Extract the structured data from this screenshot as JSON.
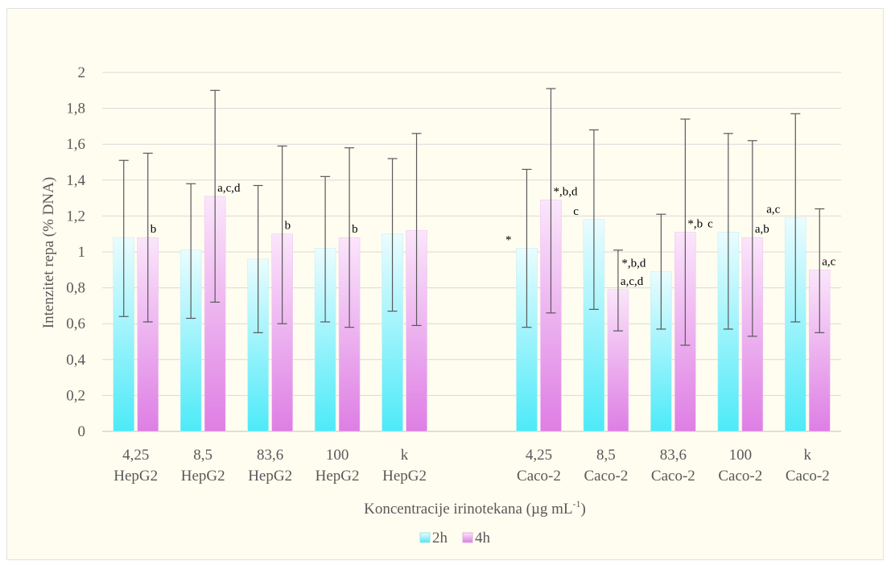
{
  "chart_data": {
    "type": "bar",
    "title": "",
    "xlabel": "Koncentracije irinotekana (µg mL",
    "xlabel_superscript": "-1",
    "xlabel_suffix": ")",
    "ylabel": "Intenzitet repa (% DNA)",
    "ylim": [
      0,
      2
    ],
    "yticks": [
      "0",
      "0,2",
      "0,4",
      "0,6",
      "0,8",
      "1",
      "1,2",
      "1,4",
      "1,6",
      "1,8",
      "2"
    ],
    "grid": true,
    "legend_position": "bottom",
    "categories": [
      [
        "4,25",
        "HepG2"
      ],
      [
        "8,5",
        "HepG2"
      ],
      [
        "83,6",
        "HepG2"
      ],
      [
        "100",
        "HepG2"
      ],
      [
        "k",
        "HepG2"
      ],
      [
        "",
        ""
      ],
      [
        "4,25",
        "Caco-2"
      ],
      [
        "8,5",
        "Caco-2"
      ],
      [
        "83,6",
        "Caco-2"
      ],
      [
        "100",
        "Caco-2"
      ],
      [
        "k",
        "Caco-2"
      ]
    ],
    "series": [
      {
        "name": "2h",
        "color_top": "#eafcff",
        "color_bottom": "#4deaf8",
        "values": [
          1.08,
          1.01,
          0.96,
          1.02,
          1.1,
          null,
          1.02,
          1.18,
          0.89,
          1.11,
          1.19
        ],
        "error_low": [
          0.64,
          0.63,
          0.55,
          0.61,
          0.67,
          null,
          0.58,
          0.68,
          0.57,
          0.57,
          0.61
        ],
        "error_high": [
          1.51,
          1.38,
          1.37,
          1.42,
          1.52,
          null,
          1.46,
          1.68,
          1.21,
          1.66,
          1.77
        ],
        "annotations": [
          "",
          "",
          "",
          "",
          "",
          "",
          "*",
          "c",
          "*,b,d",
          "c",
          "a,c"
        ]
      },
      {
        "name": "4h",
        "color_top": "#fbe6fb",
        "color_bottom": "#de7ee4",
        "values": [
          1.08,
          1.31,
          1.1,
          1.08,
          1.12,
          null,
          1.29,
          0.79,
          1.11,
          1.08,
          0.9
        ],
        "error_low": [
          0.61,
          0.72,
          0.6,
          0.58,
          0.59,
          null,
          0.66,
          0.56,
          0.48,
          0.53,
          0.55
        ],
        "error_high": [
          1.55,
          1.9,
          1.59,
          1.58,
          1.66,
          null,
          1.91,
          1.01,
          1.74,
          1.62,
          1.24
        ],
        "annotations": [
          "b",
          "a,c,d",
          "b",
          "b",
          "",
          "",
          "*,b,d",
          "a,c,d",
          "*,b",
          "a,b",
          "a,c"
        ]
      }
    ]
  },
  "colors": {
    "background": "#fffdf0",
    "grid": "#d9d9d9",
    "error_bar": "#595959"
  }
}
